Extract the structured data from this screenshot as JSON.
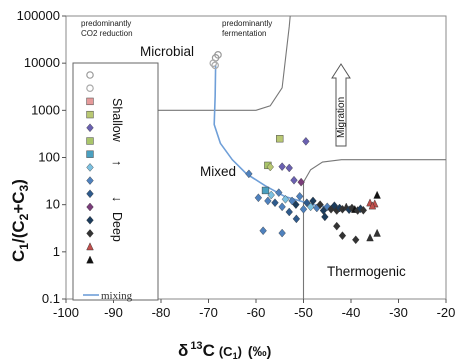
{
  "chart_data": {
    "type": "scatter",
    "ylabel_main": "C",
    "ylabel_sub1": "1",
    "ylabel_mid": "/(C",
    "ylabel_sub2": "2",
    "ylabel_plus": "+C",
    "ylabel_sub3": "3",
    "ylabel_end": ")",
    "xlabel_delta": "δ",
    "xlabel_sup": "13",
    "xlabel_c": "C",
    "xlabel_paren": "(C",
    "xlabel_paren_sub": "1",
    "xlabel_close": ")",
    "xlabel_unit": "(‰)",
    "xlim": [
      -100,
      -20
    ],
    "ylim": [
      0.1,
      100000
    ],
    "y_scale": "log",
    "x_ticks": [
      -100,
      -90,
      -80,
      -70,
      -60,
      -50,
      -40,
      -30,
      -20
    ],
    "y_ticks": [
      {
        "value": 0.1,
        "label": "0.1"
      },
      {
        "value": 1,
        "label": "1"
      },
      {
        "value": 10,
        "label": "10"
      },
      {
        "value": 100,
        "label": "100"
      },
      {
        "value": 1000,
        "label": "1000"
      },
      {
        "value": 10000,
        "label": "10000"
      },
      {
        "value": 100000,
        "label": "100000"
      }
    ],
    "annotations": {
      "co2_line1": "predominantly",
      "co2_line2": "CO2 reduction",
      "ferm_line1": "predominantly",
      "ferm_line2": "fermentation",
      "microbial": "Microbial",
      "mixed": "Mixed",
      "thermogenic": "Thermogenic",
      "migration": "Migration"
    },
    "legend": {
      "shallow": "Shallow",
      "deep": "Deep",
      "arrow_up": "↑",
      "arrow_down": "↓",
      "mixing": "mixing",
      "markers": [
        {
          "shape": "circle-open",
          "color": "#9a9a9a"
        },
        {
          "shape": "circle-open",
          "color": "#aaaaaa"
        },
        {
          "shape": "square",
          "color": "#e59a9a"
        },
        {
          "shape": "square",
          "color": "#b9c873"
        },
        {
          "shape": "diamond",
          "color": "#6a60b0"
        },
        {
          "shape": "square",
          "color": "#a9c56a"
        },
        {
          "shape": "square",
          "color": "#4aa0c0"
        },
        {
          "shape": "diamond",
          "color": "#7bc0e0"
        },
        {
          "shape": "diamond",
          "color": "#4f81bd"
        },
        {
          "shape": "diamond",
          "color": "#2e5a8c"
        },
        {
          "shape": "diamond",
          "color": "#7a3d7a"
        },
        {
          "shape": "diamond",
          "color": "#1c3c5c"
        },
        {
          "shape": "diamond",
          "color": "#333333"
        },
        {
          "shape": "triangle",
          "color": "#c0504d"
        },
        {
          "shape": "triangle",
          "color": "#111111"
        }
      ]
    },
    "boundaries": [
      {
        "name": "microbial-boundary",
        "points": [
          [
            -81,
            1000
          ],
          [
            -60,
            1000
          ],
          [
            -57,
            1250
          ],
          [
            -54.5,
            3000
          ],
          [
            -53,
            60000
          ],
          [
            -52.8,
            100000
          ]
        ]
      },
      {
        "name": "thermogenic-boundary-left",
        "points": [
          [
            -50,
            0.1
          ],
          [
            -50,
            30
          ]
        ]
      },
      {
        "name": "thermogenic-boundary-curve",
        "points": [
          [
            -50,
            30
          ],
          [
            -48.5,
            55
          ],
          [
            -46,
            80
          ],
          [
            -42,
            90
          ],
          [
            -20,
            90
          ]
        ]
      }
    ],
    "mixing_curve": [
      [
        -68.5,
        9000
      ],
      [
        -68.6,
        2000
      ],
      [
        -68.8,
        500
      ],
      [
        -67.5,
        200
      ],
      [
        -65,
        90
      ],
      [
        -62,
        45
      ],
      [
        -58,
        25
      ],
      [
        -54,
        15
      ],
      [
        -48,
        10
      ],
      [
        -42,
        8
      ],
      [
        -37,
        7.5
      ]
    ],
    "points": [
      {
        "x": -68.5,
        "y": 13000,
        "shape": "circle-open",
        "color": "#9a9a9a"
      },
      {
        "x": -68.0,
        "y": 15000,
        "shape": "circle-open",
        "color": "#9a9a9a"
      },
      {
        "x": -69.0,
        "y": 10000,
        "shape": "circle-open",
        "color": "#aaaaaa"
      },
      {
        "x": -68.6,
        "y": 9000,
        "shape": "circle-open",
        "color": "#aaaaaa"
      },
      {
        "x": -55.0,
        "y": 250,
        "shape": "square",
        "color": "#b9c873"
      },
      {
        "x": -49.5,
        "y": 220,
        "shape": "diamond",
        "color": "#6a60b0"
      },
      {
        "x": -57.5,
        "y": 68,
        "shape": "square",
        "color": "#a9c56a"
      },
      {
        "x": -57.0,
        "y": 63,
        "shape": "diamond",
        "color": "#b9c873"
      },
      {
        "x": -54.5,
        "y": 64,
        "shape": "diamond",
        "color": "#6a60b0"
      },
      {
        "x": -53.0,
        "y": 60,
        "shape": "diamond",
        "color": "#6a60b0"
      },
      {
        "x": -50.5,
        "y": 30,
        "shape": "diamond",
        "color": "#7a3d7a"
      },
      {
        "x": -52.0,
        "y": 33,
        "shape": "diamond",
        "color": "#6a60b0"
      },
      {
        "x": -61.5,
        "y": 45,
        "shape": "diamond",
        "color": "#4f81bd"
      },
      {
        "x": -59.5,
        "y": 14,
        "shape": "diamond",
        "color": "#4f81bd"
      },
      {
        "x": -58.0,
        "y": 20,
        "shape": "square",
        "color": "#4aa0c0"
      },
      {
        "x": -57.5,
        "y": 12,
        "shape": "diamond",
        "color": "#4f81bd"
      },
      {
        "x": -56.8,
        "y": 16,
        "shape": "diamond",
        "color": "#7bc0e0"
      },
      {
        "x": -56.0,
        "y": 11,
        "shape": "diamond",
        "color": "#2e5a8c"
      },
      {
        "x": -55.2,
        "y": 18,
        "shape": "diamond",
        "color": "#4f81bd"
      },
      {
        "x": -54.5,
        "y": 9,
        "shape": "diamond",
        "color": "#4f81bd"
      },
      {
        "x": -53.8,
        "y": 13,
        "shape": "diamond",
        "color": "#7bc0e0"
      },
      {
        "x": -53.0,
        "y": 7,
        "shape": "diamond",
        "color": "#2e5a8c"
      },
      {
        "x": -52.4,
        "y": 12,
        "shape": "diamond",
        "color": "#4f81bd"
      },
      {
        "x": -51.6,
        "y": 10,
        "shape": "diamond",
        "color": "#1c3c5c"
      },
      {
        "x": -50.8,
        "y": 15,
        "shape": "diamond",
        "color": "#4f81bd"
      },
      {
        "x": -50.0,
        "y": 8,
        "shape": "diamond",
        "color": "#4f81bd"
      },
      {
        "x": -49.3,
        "y": 11,
        "shape": "diamond",
        "color": "#2e5a8c"
      },
      {
        "x": -48.5,
        "y": 9,
        "shape": "diamond",
        "color": "#7bc0e0"
      },
      {
        "x": -48.0,
        "y": 12,
        "shape": "diamond",
        "color": "#1c3c5c"
      },
      {
        "x": -47.2,
        "y": 8.5,
        "shape": "diamond",
        "color": "#4f81bd"
      },
      {
        "x": -46.5,
        "y": 10,
        "shape": "diamond",
        "color": "#333333"
      },
      {
        "x": -45.8,
        "y": 7.5,
        "shape": "diamond",
        "color": "#1c3c5c"
      },
      {
        "x": -45.0,
        "y": 9,
        "shape": "diamond",
        "color": "#4f81bd"
      },
      {
        "x": -44.2,
        "y": 8,
        "shape": "diamond",
        "color": "#333333"
      },
      {
        "x": -43.5,
        "y": 9.5,
        "shape": "diamond",
        "color": "#1c3c5c"
      },
      {
        "x": -43.0,
        "y": 7.5,
        "shape": "diamond",
        "color": "#333333"
      },
      {
        "x": -42.4,
        "y": 8.5,
        "shape": "diamond",
        "color": "#1c3c5c"
      },
      {
        "x": -41.8,
        "y": 8,
        "shape": "diamond",
        "color": "#333333"
      },
      {
        "x": -41.0,
        "y": 9,
        "shape": "triangle",
        "color": "#333333"
      },
      {
        "x": -40.4,
        "y": 7.8,
        "shape": "diamond",
        "color": "#1c3c5c"
      },
      {
        "x": -39.8,
        "y": 8.5,
        "shape": "diamond",
        "color": "#333333"
      },
      {
        "x": -39.2,
        "y": 8,
        "shape": "triangle",
        "color": "#111111"
      },
      {
        "x": -38.6,
        "y": 7.5,
        "shape": "diamond",
        "color": "#333333"
      },
      {
        "x": -38.0,
        "y": 8.2,
        "shape": "diamond",
        "color": "#1c3c5c"
      },
      {
        "x": -37.4,
        "y": 7.6,
        "shape": "diamond",
        "color": "#333333"
      },
      {
        "x": -36.0,
        "y": 11,
        "shape": "triangle",
        "color": "#c0504d"
      },
      {
        "x": -35.0,
        "y": 10.5,
        "shape": "triangle",
        "color": "#c0504d"
      },
      {
        "x": -34.5,
        "y": 16,
        "shape": "triangle",
        "color": "#111111"
      },
      {
        "x": -35.5,
        "y": 9.5,
        "shape": "triangle",
        "color": "#c0504d"
      },
      {
        "x": -58.5,
        "y": 2.8,
        "shape": "diamond",
        "color": "#4f81bd"
      },
      {
        "x": -54.5,
        "y": 2.5,
        "shape": "diamond",
        "color": "#4f81bd"
      },
      {
        "x": -51.5,
        "y": 5,
        "shape": "diamond",
        "color": "#2e5a8c"
      },
      {
        "x": -45.5,
        "y": 5.5,
        "shape": "diamond",
        "color": "#1c3c5c"
      },
      {
        "x": -43.0,
        "y": 3.5,
        "shape": "diamond",
        "color": "#333333"
      },
      {
        "x": -41.8,
        "y": 2.2,
        "shape": "diamond",
        "color": "#333333"
      },
      {
        "x": -39.0,
        "y": 1.8,
        "shape": "diamond",
        "color": "#333333"
      },
      {
        "x": -36.0,
        "y": 2.0,
        "shape": "triangle",
        "color": "#333333"
      },
      {
        "x": -34.5,
        "y": 2.5,
        "shape": "triangle",
        "color": "#333333"
      }
    ]
  }
}
